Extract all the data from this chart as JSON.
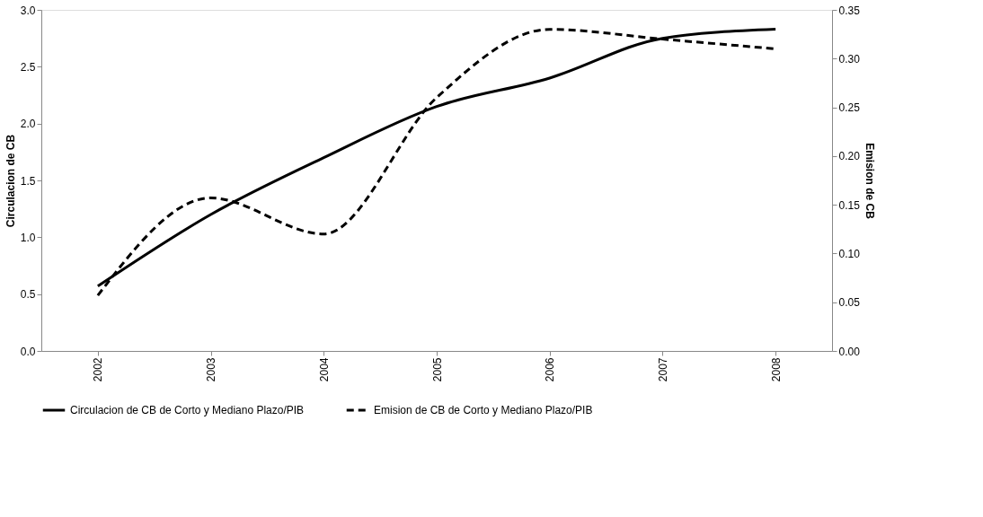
{
  "chart_data": {
    "type": "line",
    "ylabel": "Circulacion de CB",
    "y2label": "Emision de CB",
    "categories": [
      "2002",
      "2003",
      "2004",
      "2005",
      "2006",
      "2007",
      "2008"
    ],
    "series": [
      {
        "name": "Circulacion de CB de Corto y Mediano Plazo/PIB",
        "color": "#000000",
        "line_style": "solid",
        "values": [
          0.57,
          1.2,
          1.7,
          2.15,
          2.4,
          2.75,
          2.83
        ]
      },
      {
        "name": "Emision de CB de Corto y Mediano Plazo/PIB",
        "color": "#000000",
        "line_style": "dashed",
        "axis": "y2",
        "values": [
          0.057,
          0.157,
          0.12,
          0.26,
          0.33,
          0.32,
          0.31
        ]
      }
    ],
    "ylim": [
      0,
      3.0
    ],
    "yticks": [
      {
        "value": 0,
        "label": "0.0"
      },
      {
        "value": 0.5,
        "label": "0.5"
      },
      {
        "value": 1,
        "label": "1.0"
      },
      {
        "value": 1.5,
        "label": "1.5"
      },
      {
        "value": 2,
        "label": "2.0"
      },
      {
        "value": 2.5,
        "label": "2.5"
      },
      {
        "value": 3,
        "label": "3.0"
      }
    ],
    "y2lim": [
      0,
      0.35
    ],
    "y2ticks": [
      {
        "value": 0,
        "label": "0.00"
      },
      {
        "value": 0.05,
        "label": "0.05"
      },
      {
        "value": 0.1,
        "label": "0.10"
      },
      {
        "value": 0.15,
        "label": "0.15"
      },
      {
        "value": 0.2,
        "label": "0.20"
      },
      {
        "value": 0.25,
        "label": "0.25"
      },
      {
        "value": 0.3,
        "label": "0.30"
      },
      {
        "value": 0.35,
        "label": "0.35"
      }
    ],
    "grid": false,
    "legend": "bottom",
    "marker": "none"
  }
}
